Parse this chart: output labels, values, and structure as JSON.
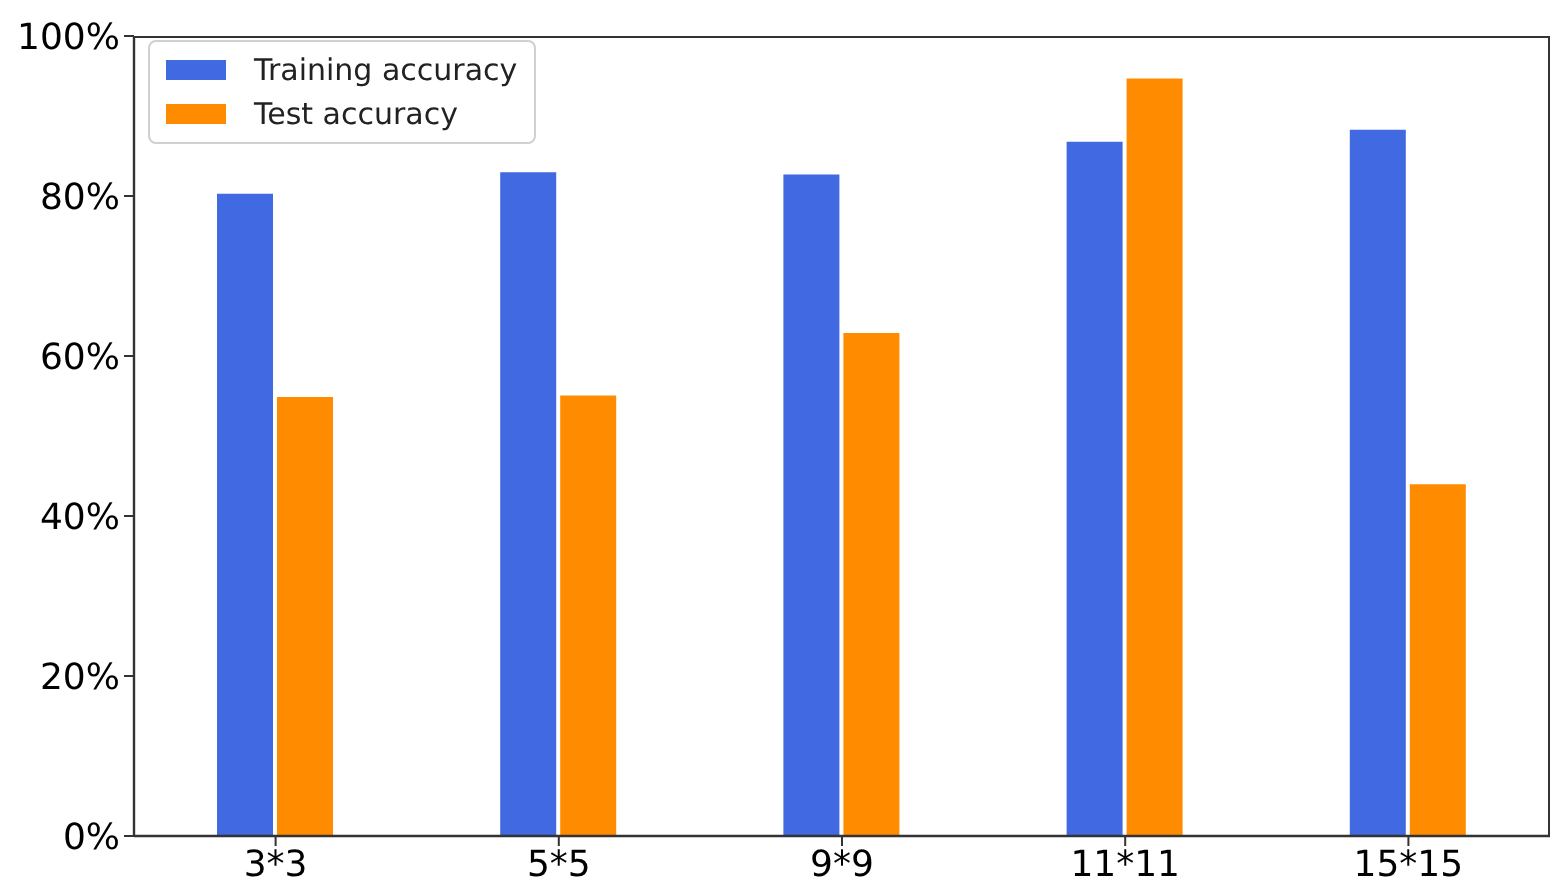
{
  "chart_data": {
    "type": "bar",
    "categories": [
      "3*3",
      "5*5",
      "9*9",
      "11*11",
      "15*15"
    ],
    "series": [
      {
        "name": "Training accuracy",
        "color": "#4169e1",
        "values": [
          80.4,
          83.1,
          82.8,
          86.9,
          88.4
        ]
      },
      {
        "name": "Test accuracy",
        "color": "#ff8c00",
        "values": [
          55.0,
          55.2,
          63.0,
          94.8,
          44.1
        ]
      }
    ],
    "ylim": [
      0,
      100
    ],
    "yticks": [
      {
        "value": 0,
        "label": "0%"
      },
      {
        "value": 20,
        "label": "20%"
      },
      {
        "value": 40,
        "label": "40%"
      },
      {
        "value": 60,
        "label": "60%"
      },
      {
        "value": 80,
        "label": "80%"
      },
      {
        "value": 100,
        "label": "100%"
      }
    ],
    "grid": false,
    "legend": "top left"
  }
}
